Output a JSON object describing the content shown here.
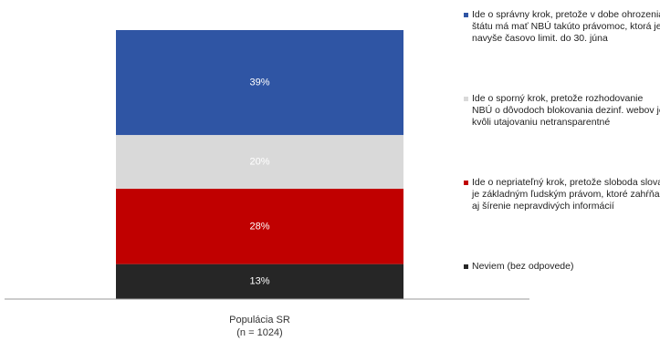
{
  "chart_data": {
    "type": "stacked-bar",
    "categories": [
      "Populácia SR\n(n = 1024)"
    ],
    "series": [
      {
        "name": "Ide o správny krok, pretože v dobe ohrozenia štátu má mať NBÚ takúto právomoc, ktorá je navyše časovo limit. do 30. júna",
        "color": "#2f55a4",
        "values": [
          39
        ],
        "value_labels": [
          "39%"
        ]
      },
      {
        "name": "Ide o sporný krok, pretože rozhodovanie NBÚ o dôvodoch blokovania dezinf. webov je kvôli utajovaniu netransparentné",
        "color": "#d9d9d9",
        "values": [
          20
        ],
        "value_labels": [
          "20%"
        ]
      },
      {
        "name": "Ide o nepriateľný krok, pretože sloboda slova je základným ľudským právom, ktoré zahŕňa aj šírenie nepravdivých informácií",
        "color": "#c00000",
        "values": [
          28
        ],
        "value_labels": [
          "28%"
        ]
      },
      {
        "name": "Neviem (bez odpovede)",
        "color": "#262626",
        "values": [
          13
        ],
        "value_labels": [
          "13%"
        ]
      }
    ]
  }
}
